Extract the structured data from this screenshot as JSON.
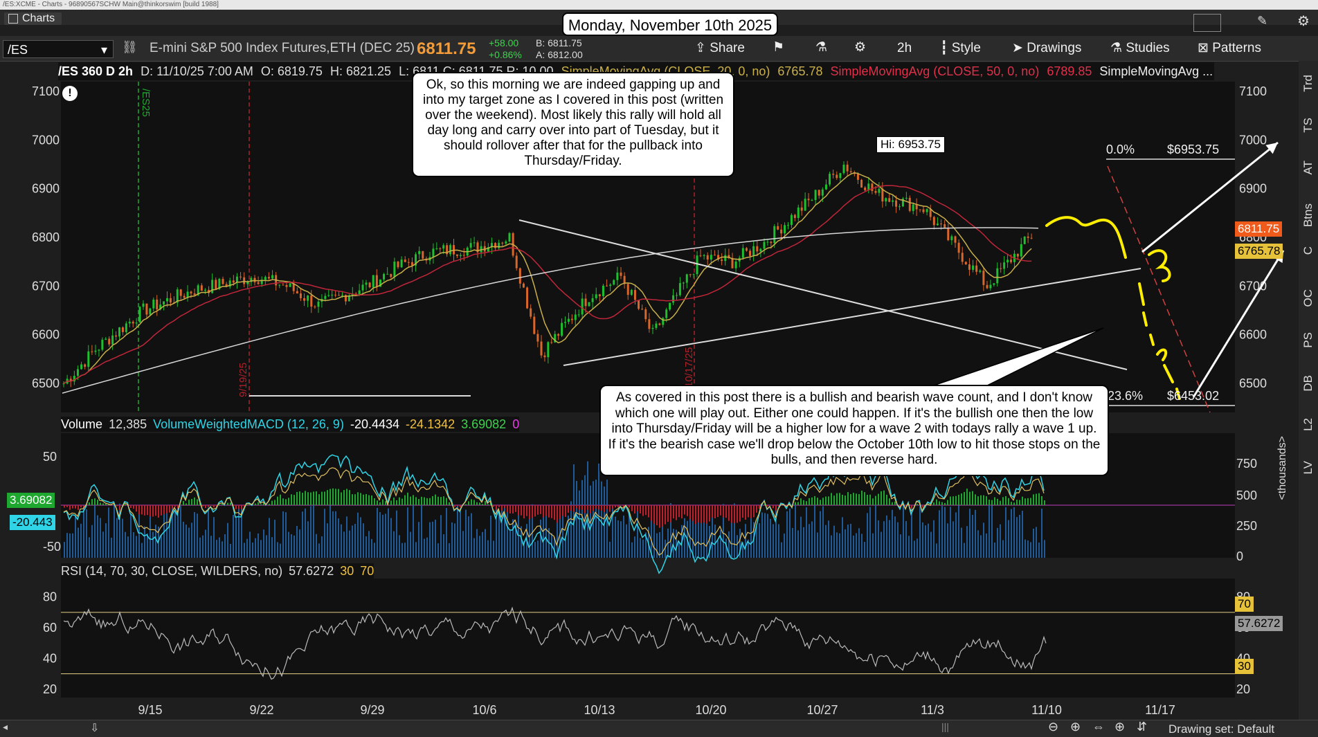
{
  "window": {
    "title": "/ES:XCME - Charts - 96890567SCHW Main@thinkorswim [build 1988]",
    "tab_label": "Charts"
  },
  "date_banner": "Monday, November 10th 2025",
  "toolbar": {
    "symbol": "/ES",
    "description": "E-mini S&P 500 Index Futures,ETH (DEC 25)",
    "last": "6811.75",
    "change": "+58.00",
    "change_pct": "+0.86%",
    "bid": "B: 6811.75",
    "ask": "A: 6812.00",
    "share": "Share",
    "timeframe": "2h",
    "style": "Style",
    "drawings": "Drawings",
    "studies": "Studies",
    "patterns": "Patterns"
  },
  "infobar": {
    "title": "/ES 360 D 2h",
    "d": "D: 11/10/25 7:00 AM",
    "o": "O: 6819.75",
    "h": "H: 6821.25",
    "rest": "L: 6811  C: 6811.75  R: 10.00",
    "sma1": "SimpleMovingAvg (CLOSE, 20, 0, no)",
    "sma1_val": "6765.78",
    "sma2": "SimpleMovingAvg (CLOSE, 50, 0, no)",
    "sma2_val": "6789.85",
    "sma3": "SimpleMovingAvg ..."
  },
  "notes": {
    "top": "Ok, so this morning we are indeed gapping up and into my target zone as I covered in this post (written over the weekend).  Most likely this rally will hold all day long and carry over into part of Tuesday, but it should rollover after that for the pullback into Thursday/Friday.",
    "bottom": "As covered in this post there is a bullish and bearish wave count, and I don't know which one will play out.  Either one could happen.  If it's the bullish one then the low into Thursday/Friday will be a higher low for a wave 2 with todays rally a wave 1 up.  If it's the bearish case we'll drop below the October 10th low to hit those stops on the bulls, and then reverse hard."
  },
  "price_panel": {
    "hi_label": "Hi: 6953.75",
    "fib_top_pct": "0.0%",
    "fib_top_val": "$6953.75",
    "fib_bot_pct": "23.6%",
    "fib_bot_val": "$6453.02",
    "last_tag": "6811.75",
    "sma_tag": "6765.78",
    "ticks": [
      "7100",
      "7000",
      "6900",
      "6800",
      "6700",
      "6600",
      "6500"
    ],
    "vlines": [
      "/ES25",
      "9/19/25",
      "10/17/25"
    ]
  },
  "volume_panel": {
    "label": "Volume",
    "volume": "12,385",
    "study": "VolumeWeightedMACD (12, 26, 9)",
    "v1": "-20.4434",
    "v2": "-24.1342",
    "v3": "3.69082",
    "v4": "0",
    "left_ticks": [
      "50",
      "-50"
    ],
    "right_ticks": [
      "750",
      "500",
      "250",
      "0"
    ],
    "right_axis_title": "<thousands>",
    "tag_green": "3.69082",
    "tag_cyan": "-20.443"
  },
  "rsi_panel": {
    "label": "RSI (14, 70, 30, CLOSE, WILDERS, no)",
    "value": "57.6272",
    "p1": "30",
    "p2": "70",
    "ticks": [
      "80",
      "60",
      "40",
      "20"
    ],
    "tag_70": "70",
    "tag_val": "57.6272",
    "tag_30": "30"
  },
  "x_axis": [
    "9/15",
    "9/22",
    "9/29",
    "10/6",
    "10/13",
    "10/20",
    "10/27",
    "11/3",
    "11/10",
    "11/17"
  ],
  "side_tabs": [
    "Trd",
    "TS",
    "AT",
    "Btns",
    "C",
    "OC",
    "PS",
    "DB",
    "L2",
    "LV"
  ],
  "status": {
    "drawing_set": "Drawing set: Default"
  },
  "colors": {
    "bg": "#111111",
    "up": "#1fbf2f",
    "down": "#d9662a",
    "sma20": "#c9b04a",
    "sma50": "#c0263a",
    "sma200": "#d8d8d8",
    "yellow": "#ffee00",
    "cyan": "#2fd4e6"
  },
  "chart_data": {
    "type": "candlestick",
    "symbol": "/ES",
    "x_dates": [
      "9/15",
      "9/22",
      "9/29",
      "10/6",
      "10/13",
      "10/20",
      "10/27",
      "11/3",
      "11/10",
      "11/17"
    ],
    "ylim": [
      6450,
      7120
    ],
    "approx_close_path": [
      {
        "date": "9/10",
        "close": 6500
      },
      {
        "date": "9/12",
        "close": 6570
      },
      {
        "date": "9/15",
        "close": 6650
      },
      {
        "date": "9/18",
        "close": 6690
      },
      {
        "date": "9/22",
        "close": 6720
      },
      {
        "date": "9/24",
        "close": 6700
      },
      {
        "date": "9/26",
        "close": 6660
      },
      {
        "date": "9/29",
        "close": 6700
      },
      {
        "date": "10/1",
        "close": 6740
      },
      {
        "date": "10/3",
        "close": 6770
      },
      {
        "date": "10/6",
        "close": 6780
      },
      {
        "date": "10/8",
        "close": 6800
      },
      {
        "date": "10/10",
        "close": 6560
      },
      {
        "date": "10/13",
        "close": 6680
      },
      {
        "date": "10/15",
        "close": 6720
      },
      {
        "date": "10/17",
        "close": 6600
      },
      {
        "date": "10/20",
        "close": 6760
      },
      {
        "date": "10/22",
        "close": 6750
      },
      {
        "date": "10/24",
        "close": 6790
      },
      {
        "date": "10/27",
        "close": 6880
      },
      {
        "date": "10/29",
        "close": 6950
      },
      {
        "date": "10/31",
        "close": 6890
      },
      {
        "date": "11/3",
        "close": 6860
      },
      {
        "date": "11/5",
        "close": 6780
      },
      {
        "date": "11/7",
        "close": 6700
      },
      {
        "date": "11/10",
        "close": 6811.75
      }
    ],
    "hi": 6953.75,
    "fib": {
      "0.0%": 6953.75,
      "23.6%": 6453.02
    }
  }
}
